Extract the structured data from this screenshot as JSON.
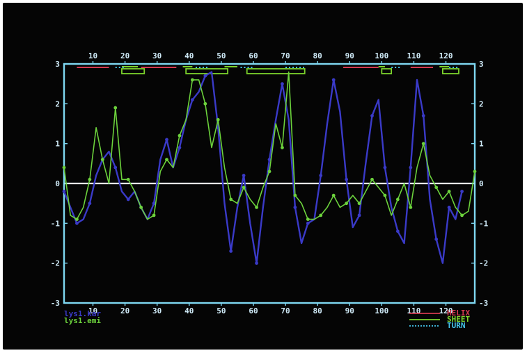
{
  "chart_data": {
    "type": "line",
    "title": "",
    "xlabel": "",
    "ylabel": "",
    "xlim": [
      1,
      129
    ],
    "ylim": [
      -3,
      3
    ],
    "x_ticks": [
      10,
      20,
      30,
      40,
      50,
      60,
      70,
      80,
      90,
      100,
      110,
      120
    ],
    "y_ticks": [
      3,
      2,
      1,
      0,
      -1,
      -2,
      -3
    ],
    "y_tick_labels": [
      "3",
      "2",
      "1",
      "0",
      "-1",
      "-2",
      "-3"
    ],
    "grid": false,
    "zero_line": true,
    "files": [
      "lys1.kar",
      "lys1.emi"
    ],
    "colors": {
      "frame": "#7fd8f2",
      "series1": "#3a3ac8",
      "series2": "#6cd23c",
      "helix": "#d23a50",
      "sheet": "#7cd42c",
      "turn": "#46c8ee",
      "axis_text": "#dff4ff"
    },
    "series": [
      {
        "label": "lys1.kar",
        "color": "#3a3ac8",
        "x": [
          1,
          3,
          5,
          7,
          9,
          11,
          13,
          15,
          17,
          19,
          21,
          23,
          25,
          27,
          29,
          31,
          33,
          35,
          37,
          39,
          41,
          43,
          45,
          47,
          49,
          51,
          53,
          55,
          57,
          59,
          61,
          63,
          65,
          67,
          69,
          71,
          73,
          75,
          77,
          79,
          81,
          83,
          85,
          87,
          89,
          91,
          93,
          95,
          97,
          99,
          101,
          103,
          105,
          107,
          109,
          111,
          113,
          115,
          117,
          119,
          121,
          123,
          125
        ],
        "y": [
          -0.2,
          -0.6,
          -1.0,
          -0.9,
          -0.5,
          0.2,
          0.6,
          0.8,
          0.4,
          -0.2,
          -0.4,
          -0.2,
          -0.6,
          -0.9,
          -0.5,
          0.6,
          1.1,
          0.4,
          0.9,
          1.6,
          2.1,
          2.3,
          2.7,
          2.8,
          1.4,
          -0.5,
          -1.7,
          -0.6,
          0.2,
          -1.0,
          -2.0,
          -0.6,
          0.6,
          1.6,
          2.5,
          1.6,
          -0.6,
          -1.5,
          -1.0,
          -0.9,
          0.2,
          1.5,
          2.6,
          1.8,
          0.1,
          -1.1,
          -0.8,
          0.5,
          1.7,
          2.1,
          0.4,
          -0.6,
          -1.2,
          -1.5,
          0.4,
          2.6,
          1.7,
          -0.4,
          -1.4,
          -2.0,
          -0.6,
          -0.9,
          -0.2
        ]
      },
      {
        "label": "lys1.emi",
        "color": "#6cd23c",
        "x": [
          1,
          3,
          5,
          7,
          9,
          11,
          13,
          15,
          17,
          19,
          21,
          23,
          25,
          27,
          29,
          31,
          33,
          35,
          37,
          39,
          41,
          43,
          45,
          47,
          49,
          51,
          53,
          55,
          57,
          59,
          61,
          63,
          65,
          67,
          69,
          71,
          73,
          75,
          77,
          79,
          81,
          83,
          85,
          87,
          89,
          91,
          93,
          95,
          97,
          99,
          101,
          103,
          105,
          107,
          109,
          111,
          113,
          115,
          117,
          119,
          121,
          123,
          125,
          127,
          129
        ],
        "y": [
          0.4,
          -0.8,
          -0.9,
          -0.6,
          0.1,
          1.4,
          0.6,
          0.0,
          1.9,
          0.1,
          0.1,
          -0.2,
          -0.6,
          -0.9,
          -0.8,
          0.3,
          0.6,
          0.4,
          1.2,
          1.6,
          2.6,
          2.6,
          2.0,
          0.9,
          1.6,
          0.4,
          -0.4,
          -0.5,
          -0.1,
          -0.4,
          -0.6,
          -0.1,
          0.3,
          1.5,
          0.9,
          2.8,
          -0.3,
          -0.5,
          -0.9,
          -0.9,
          -0.8,
          -0.6,
          -0.3,
          -0.6,
          -0.5,
          -0.3,
          -0.5,
          -0.2,
          0.1,
          -0.1,
          -0.3,
          -0.8,
          -0.4,
          0.0,
          -0.6,
          0.4,
          1.0,
          0.2,
          -0.1,
          -0.4,
          -0.2,
          -0.6,
          -0.8,
          -0.7,
          0.3
        ]
      }
    ],
    "secondary_structure": {
      "legend": [
        "HELIX",
        "SHEET",
        "TURN"
      ],
      "helix_segments": [
        [
          5,
          15
        ],
        [
          25,
          36
        ],
        [
          88,
          99
        ],
        [
          109,
          116
        ]
      ],
      "sheet_segments": [
        [
          19,
          24
        ],
        [
          38,
          41
        ],
        [
          51,
          55
        ],
        [
          99,
          101
        ],
        [
          118,
          121
        ]
      ],
      "sheet_boxes": [
        [
          19,
          26
        ],
        [
          39,
          52
        ],
        [
          58,
          76
        ],
        [
          100,
          103
        ],
        [
          119,
          124
        ]
      ],
      "turn_segments": [
        [
          17,
          20
        ],
        [
          42,
          46
        ],
        [
          56,
          60
        ],
        [
          70,
          76
        ],
        [
          103,
          106
        ],
        [
          121,
          124
        ]
      ]
    }
  }
}
